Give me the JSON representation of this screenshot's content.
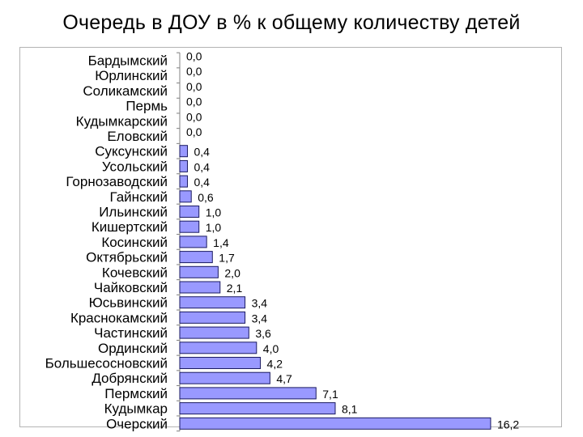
{
  "title": "Очередь в ДОУ в % к общему количеству детей",
  "chart_data": {
    "type": "bar",
    "orientation": "horizontal",
    "title": "Очередь в ДОУ в % к общему количеству детей",
    "xlabel": "",
    "ylabel": "",
    "grid": false,
    "legend": "none",
    "xlim": [
      0,
      18
    ],
    "bar_color": "#9999ff",
    "bar_edge_color": "#1a1a60",
    "categories": [
      "Бардымский",
      "Юрлинский",
      "Соликамский",
      "Пермь",
      "Кудымкарский",
      "Еловский",
      "Суксунский",
      "Усольский",
      "Горнозаводский",
      "Гайнский",
      "Ильинский",
      "Кишертский",
      "Косинский",
      "Октябрьский",
      "Кочевский",
      "Чайковский",
      "Юсьвинский",
      "Краснокамский",
      "Частинский",
      "Ординский",
      "Большесосновский",
      "Добрянский",
      "Пермский",
      "Кудымкар",
      "Очерский"
    ],
    "values": [
      0.0,
      0.0,
      0.0,
      0.0,
      0.0,
      0.0,
      0.4,
      0.4,
      0.4,
      0.6,
      1.0,
      1.0,
      1.4,
      1.7,
      2.0,
      2.1,
      3.4,
      3.4,
      3.6,
      4.0,
      4.2,
      4.7,
      7.1,
      8.1,
      16.2
    ],
    "value_labels": [
      "0,0",
      "0,0",
      "0,0",
      "0,0",
      "0,0",
      "0,0",
      "0,4",
      "0,4",
      "0,4",
      "0,6",
      "1,0",
      "1,0",
      "1,4",
      "1,7",
      "2,0",
      "2,1",
      "3,4",
      "3,4",
      "3,6",
      "4,0",
      "4,2",
      "4,7",
      "7,1",
      "8,1",
      "16,2"
    ]
  }
}
